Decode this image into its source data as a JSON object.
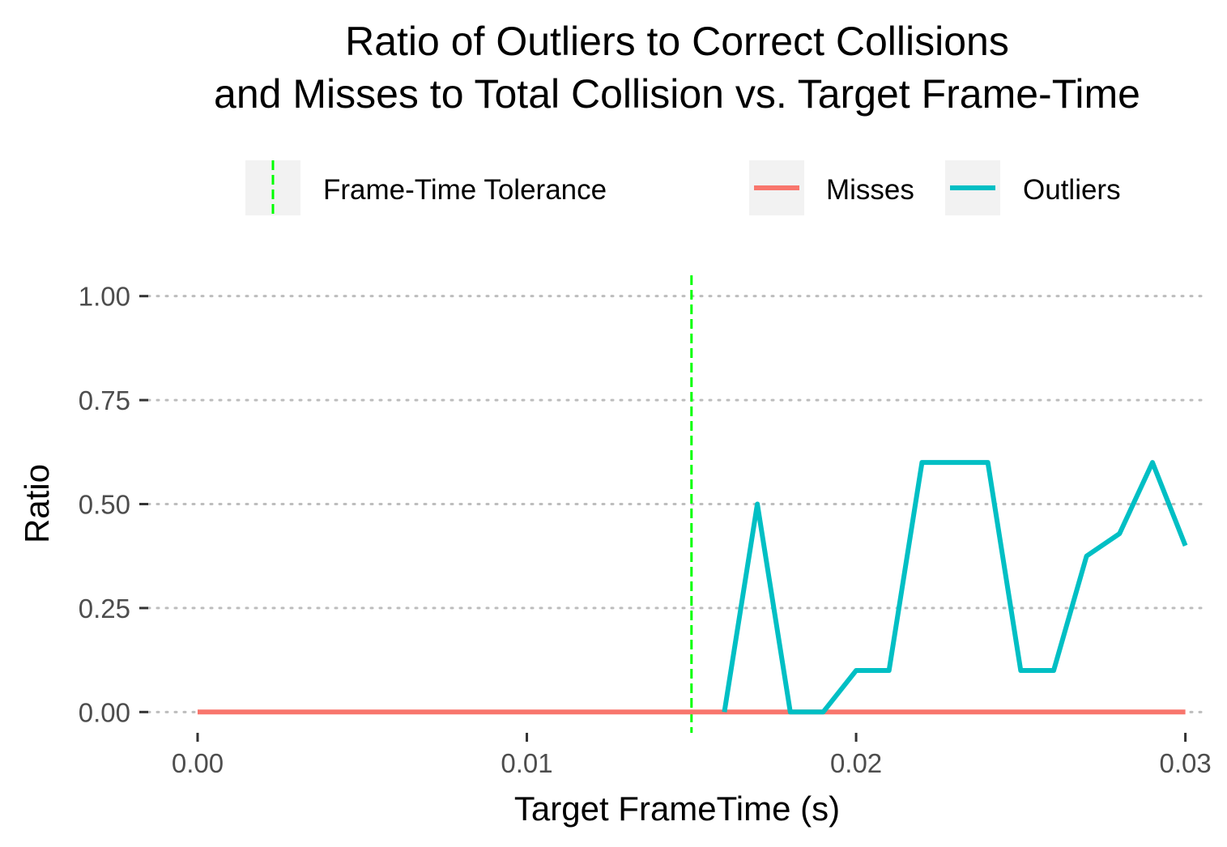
{
  "chart_data": {
    "type": "line",
    "title_lines": [
      "Ratio of Outliers to Correct Collisions",
      "and Misses to Total Collision vs. Target Frame-Time"
    ],
    "xlabel": "Target FrameTime (s)",
    "ylabel": "Ratio",
    "xlim": [
      -0.0015,
      0.0306
    ],
    "ylim": [
      -0.05,
      1.05
    ],
    "x_ticks": [
      0.0,
      0.01,
      0.02,
      0.03
    ],
    "x_tick_labels": [
      "0.00",
      "0.01",
      "0.02",
      "0.03"
    ],
    "y_ticks": [
      0.0,
      0.25,
      0.5,
      0.75,
      1.0
    ],
    "y_tick_labels": [
      "0.00",
      "0.25",
      "0.50",
      "0.75",
      "1.00"
    ],
    "grid": "horizontal dotted",
    "legend_position": "top",
    "series": [
      {
        "name": "Misses",
        "color": "#F8766D",
        "x": [
          0.0,
          0.001,
          0.002,
          0.003,
          0.004,
          0.005,
          0.006,
          0.007,
          0.008,
          0.009,
          0.01,
          0.011,
          0.012,
          0.013,
          0.014,
          0.015,
          0.016,
          0.017,
          0.018,
          0.019,
          0.02,
          0.021,
          0.022,
          0.023,
          0.024,
          0.025,
          0.026,
          0.027,
          0.028,
          0.029,
          0.03
        ],
        "y": [
          0,
          0,
          0,
          0,
          0,
          0,
          0,
          0,
          0,
          0,
          0,
          0,
          0,
          0,
          0,
          0,
          0,
          0,
          0,
          0,
          0,
          0,
          0,
          0,
          0,
          0,
          0,
          0,
          0,
          0,
          0
        ]
      },
      {
        "name": "Outliers",
        "color": "#00BFC4",
        "x": [
          0.016,
          0.017,
          0.018,
          0.019,
          0.02,
          0.021,
          0.022,
          0.023,
          0.024,
          0.025,
          0.026,
          0.027,
          0.028,
          0.029,
          0.03
        ],
        "y": [
          0.0,
          0.5,
          0.0,
          0.0,
          0.1,
          0.1,
          0.6,
          0.6,
          0.6,
          0.1,
          0.1,
          0.375,
          0.429,
          0.6,
          0.4
        ]
      }
    ],
    "vline": {
      "name": "Frame-Time Tolerance",
      "x": 0.015,
      "color": "#00FF00"
    }
  }
}
